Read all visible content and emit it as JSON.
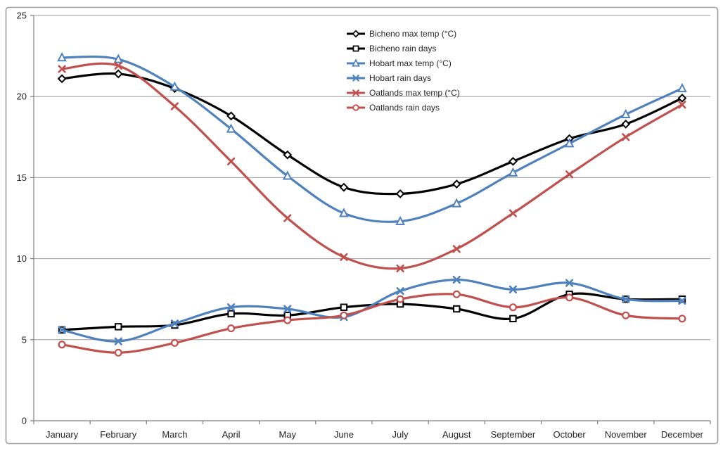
{
  "chart_data": {
    "type": "line",
    "smooth_lines": true,
    "grid": "horizontal",
    "legend_position": "inside-top-center",
    "categories": [
      "January",
      "February",
      "March",
      "April",
      "May",
      "June",
      "July",
      "August",
      "September",
      "October",
      "November",
      "December"
    ],
    "y_axis": {
      "min": 0,
      "max": 25,
      "tick_step": 5,
      "tick_labels": [
        "0",
        "5",
        "10",
        "15",
        "20",
        "25"
      ]
    },
    "series": [
      {
        "name": "Bicheno max temp (°C)",
        "color": "#000000",
        "marker": "diamond",
        "values": [
          21.1,
          21.4,
          20.5,
          18.8,
          16.4,
          14.4,
          14.0,
          14.6,
          16.0,
          17.4,
          18.3,
          19.9
        ]
      },
      {
        "name": "Bicheno rain days",
        "color": "#000000",
        "marker": "square",
        "values": [
          5.6,
          5.8,
          5.9,
          6.6,
          6.5,
          7.0,
          7.2,
          6.9,
          6.3,
          7.8,
          7.5,
          7.5
        ]
      },
      {
        "name": "Hobart max temp (°C)",
        "color": "#4F81BD",
        "marker": "triangle",
        "values": [
          22.4,
          22.3,
          20.6,
          18.0,
          15.1,
          12.8,
          12.3,
          13.4,
          15.3,
          17.1,
          18.9,
          20.5
        ]
      },
      {
        "name": "Hobart rain days",
        "color": "#4F81BD",
        "marker": "x",
        "values": [
          5.6,
          4.9,
          6.0,
          7.0,
          6.9,
          6.4,
          8.0,
          8.7,
          8.1,
          8.5,
          7.5,
          7.4
        ]
      },
      {
        "name": "Oatlands max temp (°C)",
        "color": "#C0504D",
        "marker": "x",
        "values": [
          21.7,
          21.9,
          19.4,
          16.0,
          12.5,
          10.1,
          9.4,
          10.6,
          12.8,
          15.2,
          17.5,
          19.5
        ]
      },
      {
        "name": "Oatlands rain days",
        "color": "#C0504D",
        "marker": "circle",
        "values": [
          4.7,
          4.2,
          4.8,
          5.7,
          6.2,
          6.5,
          7.5,
          7.8,
          7.0,
          7.6,
          6.5,
          6.3
        ]
      }
    ],
    "colors": {
      "background": "#FFFFFF",
      "frame_border": "#9C9C9C",
      "gridline": "#9B9B9B",
      "axis": "#7F7F7F",
      "text": "#262626"
    }
  }
}
